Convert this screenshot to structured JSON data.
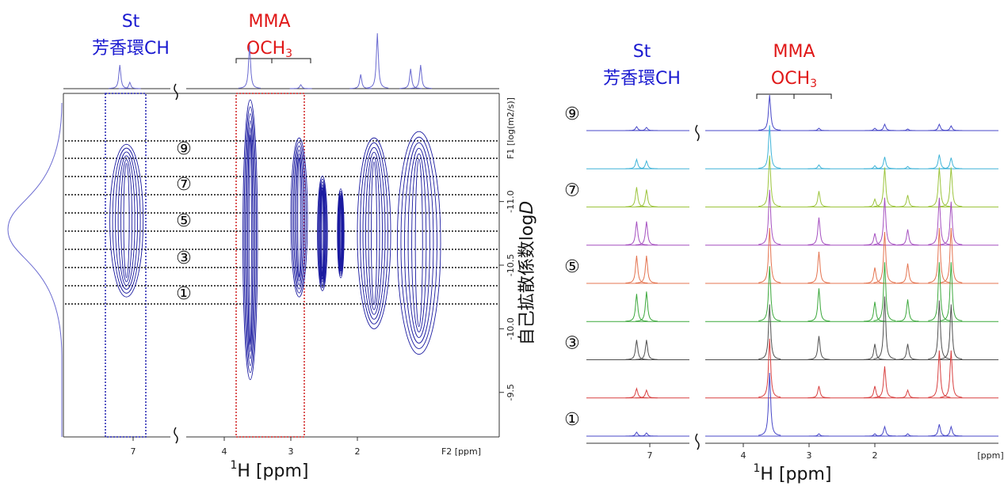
{
  "chart_data": [
    {
      "type": "contour",
      "x_axis_label": [
        "1",
        "H [ppm]"
      ],
      "x_unit_label": "F2 [ppm]",
      "y_unit_label": "F1 [log(m2/s)]",
      "y_label": [
        "自己拡散係数log",
        "D"
      ],
      "labels": {
        "st": "St",
        "st_group": "芳香環CH",
        "mma": "MMA",
        "mma_group": "OCH",
        "mma_sub": "3"
      },
      "levels": [
        "⑨",
        "⑦",
        "⑤",
        "③",
        "①"
      ],
      "xticks": [
        7,
        4,
        3,
        2
      ],
      "ylim": [
        -11.85,
        -9.15
      ],
      "yticks": [
        {
          "value": -11,
          "label": "-11.0"
        },
        {
          "value": -10.5,
          "label": "-10.5"
        },
        {
          "value": -10,
          "label": "-10.0"
        },
        {
          "value": -9.5,
          "label": "-9.5"
        }
      ],
      "color": "#1a1aa0",
      "blobs": [
        {
          "x": [
            7.35,
            6.85
          ],
          "y": [
            -11.45,
            -10.25
          ]
        },
        {
          "x": [
            3.72,
            3.5
          ],
          "y": [
            -11.8,
            -9.6
          ]
        },
        {
          "x": [
            3.0,
            2.75
          ],
          "y": [
            -11.5,
            -10.25
          ]
        },
        {
          "x": [
            2.6,
            2.45
          ],
          "y": [
            -11.2,
            -10.3
          ]
        },
        {
          "x": [
            2.3,
            2.2
          ],
          "y": [
            -11.1,
            -10.4
          ]
        },
        {
          "x": [
            2.0,
            1.5
          ],
          "y": [
            -11.5,
            -10.0
          ]
        },
        {
          "x": [
            1.4,
            0.75
          ],
          "y": [
            -11.55,
            -9.8
          ]
        }
      ],
      "top_spectrum": {
        "x": [
          7.2,
          7.05,
          3.62,
          2.85,
          1.95,
          1.7,
          1.2,
          1.05
        ],
        "values": [
          30,
          8,
          55,
          5,
          18,
          70,
          25,
          30
        ]
      }
    },
    {
      "type": "stacked-spectra",
      "x_axis_label": [
        "1",
        "H [ppm]"
      ],
      "x_unit_label": "[ppm]",
      "labels": {
        "st": "St",
        "st_group": "芳香環CH",
        "mma": "MMA",
        "mma_group": "OCH",
        "mma_sub": "3"
      },
      "xticks": [
        7,
        4,
        3,
        2
      ],
      "x": [
        7.2,
        7.05,
        3.6,
        2.85,
        2.0,
        1.85,
        1.5,
        1.02,
        0.84
      ],
      "series": [
        {
          "name": "⑨",
          "color": "#4848c8",
          "values": [
            5,
            4,
            45,
            3,
            3,
            8,
            2,
            8,
            6
          ]
        },
        {
          "name": null,
          "color": "#40b4d8",
          "values": [
            12,
            10,
            55,
            5,
            4,
            15,
            3,
            18,
            14
          ]
        },
        {
          "name": "⑦",
          "color": "#9cc43c",
          "values": [
            25,
            22,
            65,
            20,
            10,
            50,
            15,
            50,
            50
          ]
        },
        {
          "name": null,
          "color": "#a550c0",
          "values": [
            30,
            30,
            70,
            35,
            15,
            60,
            20,
            60,
            55
          ]
        },
        {
          "name": "⑤",
          "color": "#e47450",
          "values": [
            35,
            35,
            70,
            40,
            20,
            65,
            25,
            70,
            70
          ]
        },
        {
          "name": null,
          "color": "#3ca83c",
          "values": [
            35,
            38,
            70,
            42,
            25,
            75,
            28,
            75,
            75
          ]
        },
        {
          "name": "③",
          "color": "#505050",
          "values": [
            25,
            25,
            70,
            30,
            20,
            80,
            20,
            75,
            70
          ]
        },
        {
          "name": null,
          "color": "#d84040",
          "values": [
            12,
            10,
            75,
            15,
            15,
            40,
            10,
            60,
            60
          ]
        },
        {
          "name": "①",
          "color": "#4848c8",
          "values": [
            5,
            4,
            80,
            3,
            3,
            12,
            3,
            15,
            12
          ]
        }
      ]
    }
  ]
}
